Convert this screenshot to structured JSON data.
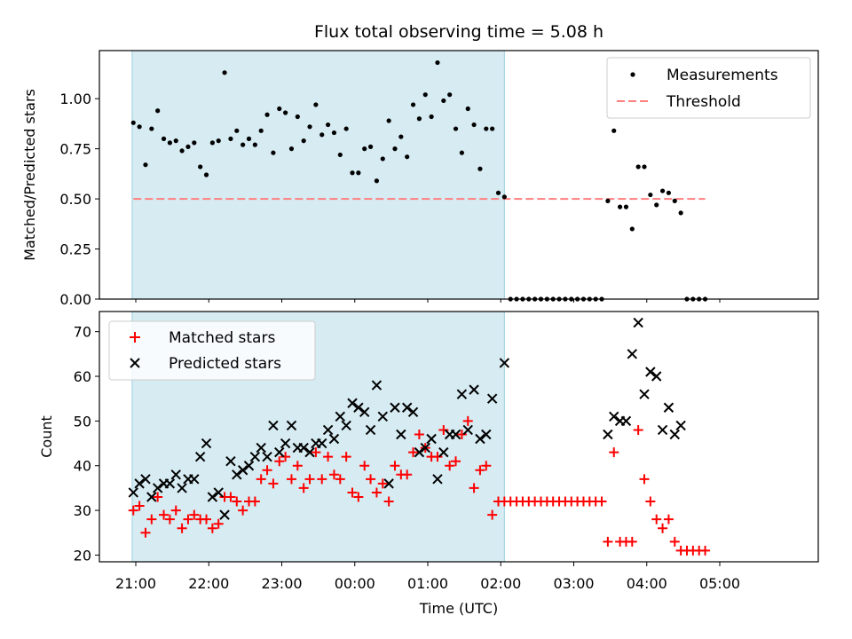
{
  "chart_data": [
    {
      "type": "scatter",
      "title": "Flux total observing time = 5.08 h",
      "xlabel": "",
      "ylabel": "Matched/Predicted stars",
      "ylim": [
        0,
        1.24
      ],
      "yticks": [
        "0.00",
        "0.25",
        "0.50",
        "0.75",
        "1.00"
      ],
      "grid": false,
      "legend_position": "top-right",
      "shaded_interval": [
        "20:57",
        "02:03"
      ],
      "colors": {
        "shade": "#add8e6",
        "measurements": "#000000",
        "threshold": "#ff7f7f"
      },
      "series": [
        {
          "name": "Measurements",
          "marker": "dot",
          "x": [
            "20:58",
            "21:03",
            "21:08",
            "21:13",
            "21:18",
            "21:23",
            "21:28",
            "21:33",
            "21:38",
            "21:43",
            "21:48",
            "21:53",
            "21:58",
            "22:03",
            "22:08",
            "22:13",
            "22:18",
            "22:23",
            "22:28",
            "22:33",
            "22:38",
            "22:43",
            "22:48",
            "22:53",
            "22:58",
            "23:03",
            "23:08",
            "23:13",
            "23:18",
            "23:23",
            "23:28",
            "23:33",
            "23:38",
            "23:43",
            "23:48",
            "23:53",
            "23:58",
            "00:03",
            "00:08",
            "00:13",
            "00:18",
            "00:23",
            "00:28",
            "00:33",
            "00:38",
            "00:43",
            "00:48",
            "00:53",
            "00:58",
            "01:03",
            "01:08",
            "01:13",
            "01:18",
            "01:23",
            "01:28",
            "01:33",
            "01:38",
            "01:43",
            "01:48",
            "01:53",
            "01:58",
            "02:03",
            "02:08",
            "02:13",
            "02:18",
            "02:23",
            "02:28",
            "02:33",
            "02:38",
            "02:43",
            "02:48",
            "02:53",
            "02:58",
            "03:03",
            "03:08",
            "03:13",
            "03:18",
            "03:23",
            "03:28",
            "03:33",
            "03:38",
            "03:43",
            "03:48",
            "03:53",
            "03:58",
            "04:03",
            "04:08",
            "04:13",
            "04:18",
            "04:23",
            "04:28",
            "04:33",
            "04:38",
            "04:43",
            "04:48"
          ],
          "y": [
            0.88,
            0.86,
            0.67,
            0.85,
            0.94,
            0.8,
            0.78,
            0.79,
            0.74,
            0.76,
            0.78,
            0.66,
            0.62,
            0.78,
            0.79,
            1.13,
            0.8,
            0.84,
            0.77,
            0.8,
            0.77,
            0.84,
            0.92,
            0.73,
            0.95,
            0.93,
            0.75,
            0.91,
            0.79,
            0.86,
            0.97,
            0.82,
            0.87,
            0.83,
            0.72,
            0.85,
            0.63,
            0.63,
            0.75,
            0.76,
            0.59,
            0.7,
            0.89,
            0.75,
            0.81,
            0.71,
            0.97,
            0.9,
            1.02,
            0.91,
            1.18,
            0.99,
            1.02,
            0.85,
            0.73,
            0.95,
            0.87,
            0.65,
            0.85,
            0.85,
            0.53,
            0.51,
            0.0,
            0.0,
            0.0,
            0.0,
            0.0,
            0.0,
            0.0,
            0.0,
            0.0,
            0.0,
            0.0,
            0.0,
            0.0,
            0.0,
            0.0,
            0.0,
            0.49,
            0.84,
            0.46,
            0.46,
            0.35,
            0.66,
            0.66,
            0.52,
            0.47,
            0.54,
            0.53,
            0.49,
            0.43,
            0.0,
            0.0,
            0.0,
            0.0
          ]
        },
        {
          "name": "Threshold",
          "style": "dashed",
          "x": [
            "20:58",
            "04:48"
          ],
          "y": [
            0.5,
            0.5
          ]
        }
      ]
    },
    {
      "type": "scatter",
      "title": "",
      "xlabel": "Time (UTC)",
      "ylabel": "Count",
      "ylim": [
        18.5,
        74.5
      ],
      "yticks": [
        "20",
        "30",
        "40",
        "50",
        "60",
        "70"
      ],
      "xticks": [
        "21:00",
        "22:00",
        "23:00",
        "00:00",
        "01:00",
        "02:00",
        "03:00",
        "04:00",
        "05:00"
      ],
      "grid": false,
      "legend_position": "top-left",
      "shaded_interval": [
        "20:57",
        "02:03"
      ],
      "colors": {
        "shade": "#add8e6",
        "matched": "#ff0000",
        "predicted": "#000000"
      },
      "series": [
        {
          "name": "Matched stars",
          "marker": "plus",
          "x": [
            "20:58",
            "21:03",
            "21:08",
            "21:13",
            "21:18",
            "21:23",
            "21:28",
            "21:33",
            "21:38",
            "21:43",
            "21:48",
            "21:53",
            "21:58",
            "22:03",
            "22:08",
            "22:13",
            "22:18",
            "22:23",
            "22:28",
            "22:33",
            "22:38",
            "22:43",
            "22:48",
            "22:53",
            "22:58",
            "23:03",
            "23:08",
            "23:13",
            "23:18",
            "23:23",
            "23:28",
            "23:33",
            "23:38",
            "23:43",
            "23:48",
            "23:53",
            "23:58",
            "00:03",
            "00:08",
            "00:13",
            "00:18",
            "00:23",
            "00:28",
            "00:33",
            "00:38",
            "00:43",
            "00:48",
            "00:53",
            "00:58",
            "01:03",
            "01:08",
            "01:13",
            "01:18",
            "01:23",
            "01:28",
            "01:33",
            "01:38",
            "01:43",
            "01:48",
            "01:53",
            "01:58",
            "02:03",
            "02:08",
            "02:13",
            "02:18",
            "02:23",
            "02:28",
            "02:33",
            "02:38",
            "02:43",
            "02:48",
            "02:53",
            "02:58",
            "03:03",
            "03:08",
            "03:13",
            "03:18",
            "03:23",
            "03:28",
            "03:33",
            "03:38",
            "03:43",
            "03:48",
            "03:53",
            "03:58",
            "04:03",
            "04:08",
            "04:13",
            "04:18",
            "04:23",
            "04:28",
            "04:33",
            "04:38",
            "04:43",
            "04:48"
          ],
          "y": [
            30,
            31,
            25,
            28,
            33,
            29,
            28,
            30,
            26,
            28,
            29,
            28,
            28,
            26,
            27,
            33,
            33,
            32,
            30,
            32,
            32,
            37,
            39,
            36,
            41,
            42,
            37,
            40,
            35,
            37,
            43,
            37,
            42,
            38,
            37,
            42,
            34,
            33,
            40,
            37,
            34,
            36,
            32,
            40,
            38,
            38,
            43,
            47,
            44,
            42,
            42,
            48,
            40,
            41,
            47,
            50,
            35,
            39,
            40,
            29,
            32,
            32,
            32,
            32,
            32,
            32,
            32,
            32,
            32,
            32,
            32,
            32,
            32,
            32,
            32,
            32,
            32,
            32,
            23,
            43,
            23,
            23,
            23,
            48,
            37,
            32,
            28,
            26,
            28,
            23,
            21,
            21,
            21,
            21,
            21
          ]
        },
        {
          "name": "Predicted stars",
          "marker": "x",
          "x": [
            "20:58",
            "21:03",
            "21:08",
            "21:13",
            "21:18",
            "21:23",
            "21:28",
            "21:33",
            "21:38",
            "21:43",
            "21:48",
            "21:53",
            "21:58",
            "22:03",
            "22:08",
            "22:13",
            "22:18",
            "22:23",
            "22:28",
            "22:33",
            "22:38",
            "22:43",
            "22:48",
            "22:53",
            "22:58",
            "23:03",
            "23:08",
            "23:13",
            "23:18",
            "23:23",
            "23:28",
            "23:33",
            "23:38",
            "23:43",
            "23:48",
            "23:53",
            "23:58",
            "00:03",
            "00:08",
            "00:13",
            "00:18",
            "00:23",
            "00:28",
            "00:33",
            "00:38",
            "00:43",
            "00:48",
            "00:53",
            "00:58",
            "01:03",
            "01:08",
            "01:13",
            "01:18",
            "01:23",
            "01:28",
            "01:33",
            "01:38",
            "01:43",
            "01:48",
            "01:53",
            "02:03",
            "03:28",
            "03:33",
            "03:38",
            "03:43",
            "03:48",
            "03:53",
            "03:58",
            "04:03",
            "04:08",
            "04:13",
            "04:18",
            "04:23",
            "04:28"
          ],
          "y": [
            34,
            36,
            37,
            33,
            35,
            36,
            36,
            38,
            35,
            37,
            37,
            42,
            45,
            33,
            34,
            29,
            41,
            38,
            39,
            40,
            42,
            44,
            42,
            49,
            43,
            45,
            49,
            44,
            44,
            43,
            45,
            45,
            48,
            46,
            51,
            49,
            54,
            53,
            52,
            48,
            58,
            51,
            36,
            53,
            47,
            53,
            52,
            43,
            44,
            46,
            37,
            43,
            47,
            47,
            56,
            48,
            57,
            46,
            47,
            55,
            63,
            47,
            51,
            50,
            50,
            65,
            72,
            56,
            61,
            60,
            48,
            53,
            47,
            49
          ]
        }
      ]
    }
  ]
}
